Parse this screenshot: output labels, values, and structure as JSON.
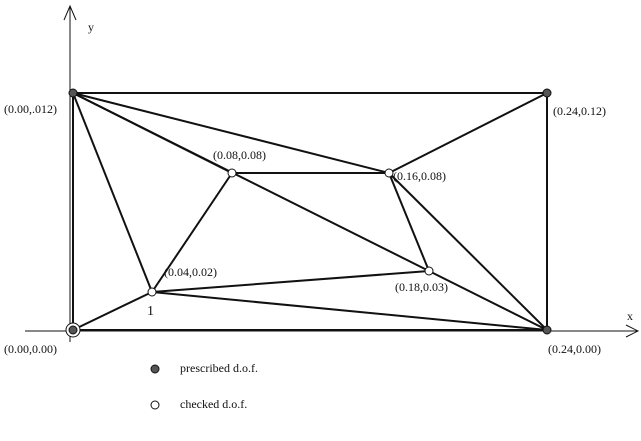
{
  "axes": {
    "x": "x",
    "y": "y"
  },
  "nodes": [
    {
      "label": "(0.00,.012)"
    },
    {
      "label": "(0.24,0.12)"
    },
    {
      "label": "(0.08,0.08)"
    },
    {
      "label": "(0.16,0.08)"
    },
    {
      "label": "(0.04,0.02)"
    },
    {
      "label": "(0.18,0.03)"
    },
    {
      "label": "(0.00,0.00)"
    },
    {
      "label": "(0.24,0.00)"
    }
  ],
  "node_number": "1",
  "legend": [
    {
      "label": "prescribed d.o.f."
    },
    {
      "label": "checked d.o.f."
    }
  ]
}
